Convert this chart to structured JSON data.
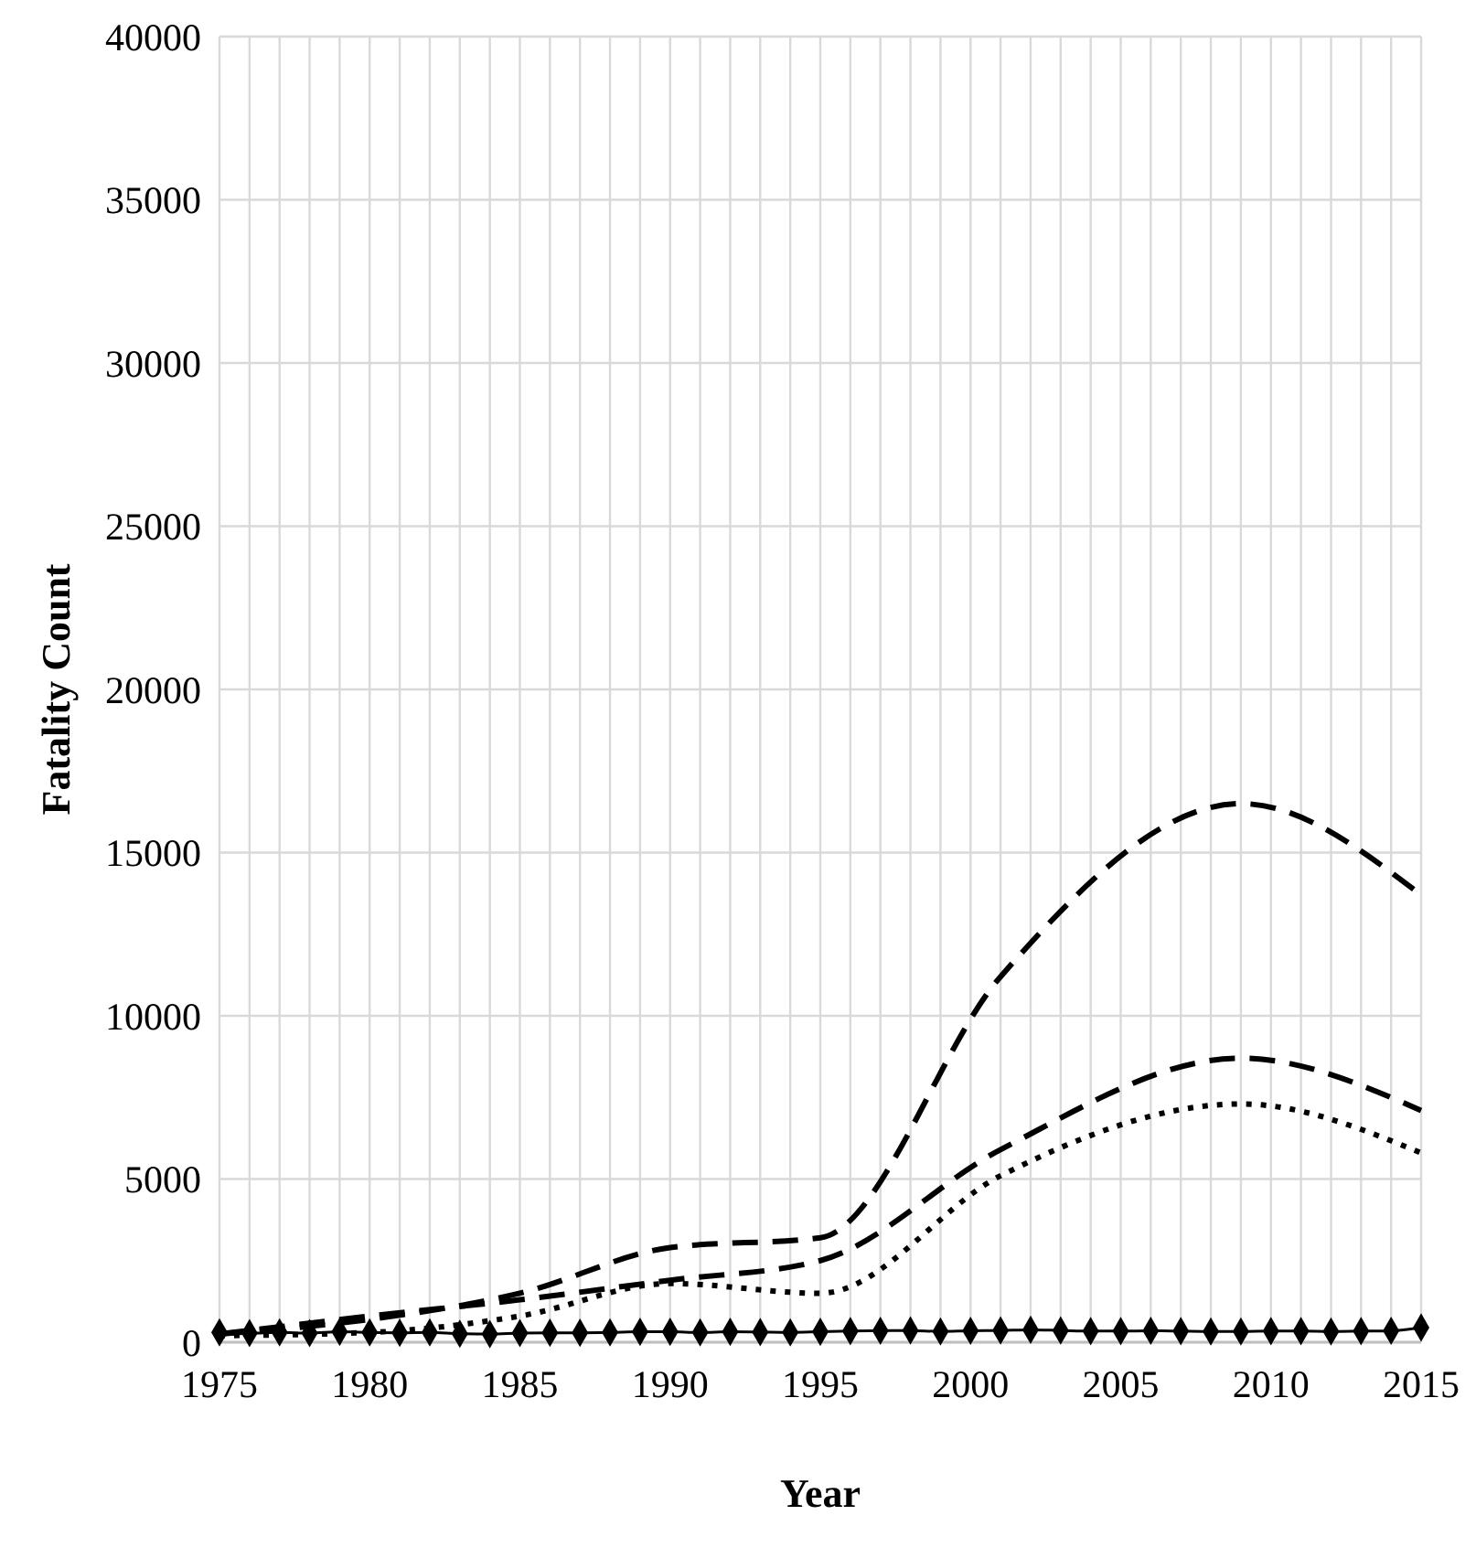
{
  "chart_data": {
    "type": "line",
    "xlabel": "Year",
    "ylabel": "Fatality Count",
    "grid": true,
    "xlim": [
      1975,
      2015
    ],
    "ylim": [
      0,
      40000
    ],
    "yticks": [
      0,
      5000,
      10000,
      15000,
      20000,
      25000,
      30000,
      35000,
      40000
    ],
    "xticks": [
      1975,
      {
        "value": 1976,
        "label": null
      },
      {
        "value": 1977,
        "label": null
      },
      {
        "value": 1978,
        "label": null
      },
      {
        "value": 1979,
        "label": null
      },
      1980,
      {
        "value": 1981,
        "label": null
      },
      {
        "value": 1982,
        "label": null
      },
      {
        "value": 1983,
        "label": null
      },
      {
        "value": 1984,
        "label": null
      },
      1985,
      {
        "value": 1986,
        "label": null
      },
      {
        "value": 1987,
        "label": null
      },
      {
        "value": 1988,
        "label": null
      },
      {
        "value": 1989,
        "label": null
      },
      1990,
      {
        "value": 1991,
        "label": null
      },
      {
        "value": 1992,
        "label": null
      },
      {
        "value": 1993,
        "label": null
      },
      {
        "value": 1994,
        "label": null
      },
      1995,
      {
        "value": 1996,
        "label": null
      },
      {
        "value": 1997,
        "label": null
      },
      {
        "value": 1998,
        "label": null
      },
      {
        "value": 1999,
        "label": null
      },
      2000,
      {
        "value": 2001,
        "label": null
      },
      {
        "value": 2002,
        "label": null
      },
      {
        "value": 2003,
        "label": null
      },
      {
        "value": 2004,
        "label": null
      },
      2005,
      {
        "value": 2006,
        "label": null
      },
      {
        "value": 2007,
        "label": null
      },
      {
        "value": 2008,
        "label": null
      },
      {
        "value": 2009,
        "label": null
      },
      2010,
      {
        "value": 2011,
        "label": null
      },
      {
        "value": 2012,
        "label": null
      },
      {
        "value": 2013,
        "label": null
      },
      {
        "value": 2014,
        "label": null
      },
      2015
    ],
    "series": [
      {
        "color": "#000000",
        "line_style": "dashed",
        "marker": "none",
        "x": [
          1975,
          1980,
          1985,
          1990,
          1995,
          2001,
          2009,
          2015
        ],
        "values": [
          250,
          700,
          1500,
          2900,
          3200,
          11200,
          16500,
          13700
        ]
      },
      {
        "color": "#000000",
        "line_style": "dashed",
        "marker": "none",
        "x": [
          1975,
          1980,
          1985,
          1990,
          1995,
          2001,
          2009,
          2015
        ],
        "values": [
          250,
          800,
          1300,
          1900,
          2500,
          5900,
          8700,
          7100
        ]
      },
      {
        "color": "#000000",
        "line_style": "dotted",
        "marker": "none",
        "x": [
          1975,
          1980,
          1985,
          1990,
          1995,
          2001,
          2009,
          2015
        ],
        "values": [
          200,
          300,
          800,
          1800,
          1500,
          5100,
          7300,
          5800
        ]
      },
      {
        "color": "#000000",
        "line_style": "solid",
        "marker": "diamond",
        "x": [
          1975,
          1976,
          1977,
          1978,
          1979,
          1980,
          1981,
          1982,
          1983,
          1984,
          1985,
          1986,
          1987,
          1988,
          1989,
          1990,
          1991,
          1992,
          1993,
          1994,
          1995,
          1996,
          1997,
          1998,
          1999,
          2000,
          2001,
          2002,
          2003,
          2004,
          2005,
          2006,
          2007,
          2008,
          2009,
          2010,
          2011,
          2012,
          2013,
          2014,
          2015
        ],
        "values": [
          300,
          280,
          300,
          280,
          320,
          300,
          290,
          300,
          260,
          250,
          280,
          290,
          290,
          300,
          320,
          320,
          300,
          320,
          310,
          300,
          320,
          340,
          350,
          360,
          330,
          350,
          360,
          380,
          360,
          340,
          340,
          350,
          340,
          330,
          330,
          340,
          340,
          330,
          340,
          350,
          450
        ]
      }
    ]
  }
}
